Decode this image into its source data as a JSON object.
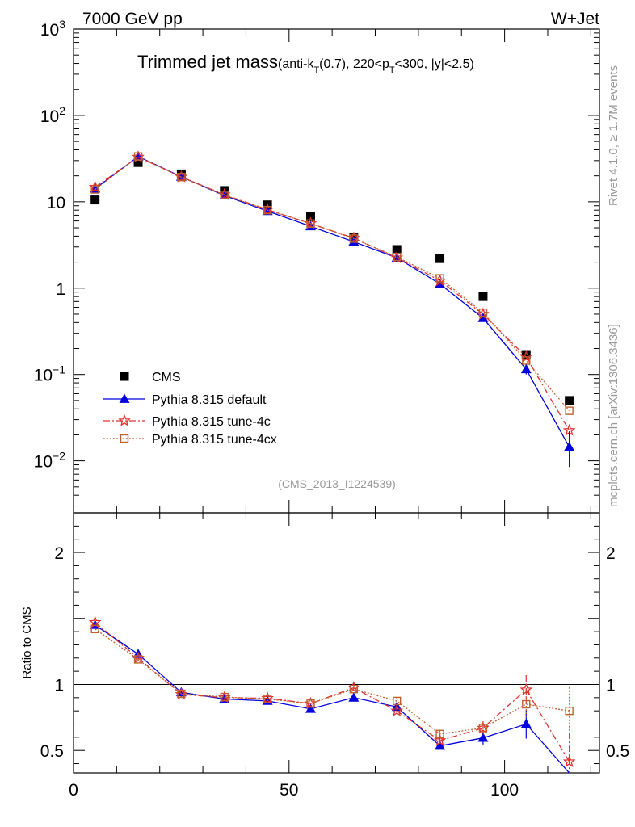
{
  "chart_data": {
    "type": "scatter",
    "header_left": "7000 GeV pp",
    "header_right": "W+Jet",
    "title_main": "Trimmed jet mass",
    "title_detail_parts": [
      "(anti-k",
      "T",
      "(0.7), 220<p",
      "T",
      "<300, |y|<2.5)"
    ],
    "side_label_top": "Rivet 4.1.0, ≥ 1.7M events",
    "side_label_bottom": "mcplots.cern.ch [arXiv:1306.3436]",
    "analysis_id": "(CMS_2013_I1224539)",
    "x": [
      5,
      15,
      25,
      35,
      45,
      55,
      65,
      75,
      85,
      95,
      105,
      115
    ],
    "xlim": [
      0,
      122
    ],
    "xticks": [
      0,
      50,
      100
    ],
    "top_panel": {
      "yscale": "log",
      "ylim": [
        0.0025,
        1000
      ],
      "ytick_labels": [
        {
          "value": 1000,
          "base": "10",
          "exp": "3"
        },
        {
          "value": 100,
          "base": "10",
          "exp": "2"
        },
        {
          "value": 10,
          "base": "10",
          "exp": ""
        },
        {
          "value": 1,
          "base": "1",
          "exp": ""
        },
        {
          "value": 0.1,
          "base": "10",
          "exp": "−1"
        },
        {
          "value": 0.01,
          "base": "10",
          "exp": "−2"
        }
      ]
    },
    "ratio_panel": {
      "ylabel": "Ratio to CMS",
      "ylim": [
        0.33,
        2.3
      ],
      "ytick_labels": [
        {
          "value": 0.5,
          "label": "0.5"
        },
        {
          "value": 1,
          "label": "1"
        },
        {
          "value": 2,
          "label": "2"
        }
      ]
    },
    "series": [
      {
        "name": "CMS",
        "style": "data",
        "color": "#000000",
        "values": [
          10.5,
          28.5,
          21.0,
          13.5,
          9.2,
          6.7,
          3.9,
          2.8,
          2.2,
          0.8,
          0.17,
          0.05
        ],
        "ratio": [
          1,
          1,
          1,
          1,
          1,
          1,
          1,
          1,
          1,
          1,
          1,
          1
        ],
        "ratio_err": [
          0,
          0,
          0,
          0,
          0,
          0,
          0,
          0,
          0,
          0,
          0,
          0
        ]
      },
      {
        "name": "Pythia 8.315 default",
        "style": "solid",
        "marker": "triangle",
        "color": "#0000dd",
        "values": [
          14.2,
          33.5,
          19.5,
          11.8,
          7.8,
          5.2,
          3.45,
          2.25,
          1.12,
          0.45,
          0.115,
          0.0145
        ],
        "ratio": [
          1.45,
          1.23,
          0.94,
          0.89,
          0.875,
          0.815,
          0.9,
          0.83,
          0.535,
          0.595,
          0.7,
          0.1
        ],
        "ratio_err": [
          0.012,
          0.012,
          0.01,
          0.012,
          0.012,
          0.015,
          0.022,
          0.025,
          0.025,
          0.05,
          0.11,
          0.15
        ]
      },
      {
        "name": "Pythia 8.315 tune-4c",
        "style": "dashdot",
        "marker": "star",
        "color": "#e03030",
        "values": [
          14.8,
          33.0,
          19.4,
          12.1,
          8.1,
          5.6,
          3.8,
          2.25,
          1.22,
          0.5,
          0.16,
          0.0225
        ],
        "ratio": [
          1.47,
          1.2,
          0.925,
          0.9,
          0.895,
          0.855,
          0.975,
          0.8,
          0.575,
          0.67,
          0.96,
          0.415
        ],
        "ratio_err": [
          0.012,
          0.012,
          0.01,
          0.012,
          0.012,
          0.015,
          0.022,
          0.025,
          0.025,
          0.05,
          0.11,
          0.22
        ]
      },
      {
        "name": "Pythia 8.315 tune-4cx",
        "style": "dotted",
        "marker": "open-square",
        "color": "#c06030",
        "values": [
          13.9,
          33.5,
          19.3,
          12.0,
          8.0,
          5.6,
          3.75,
          2.3,
          1.3,
          0.52,
          0.145,
          0.038
        ],
        "ratio": [
          1.42,
          1.19,
          0.93,
          0.905,
          0.89,
          0.855,
          0.965,
          0.875,
          0.625,
          0.67,
          0.85,
          0.8
        ],
        "ratio_err": [
          0.012,
          0.012,
          0.01,
          0.012,
          0.012,
          0.015,
          0.022,
          0.025,
          0.025,
          0.05,
          0.11,
          0.18
        ]
      }
    ]
  }
}
